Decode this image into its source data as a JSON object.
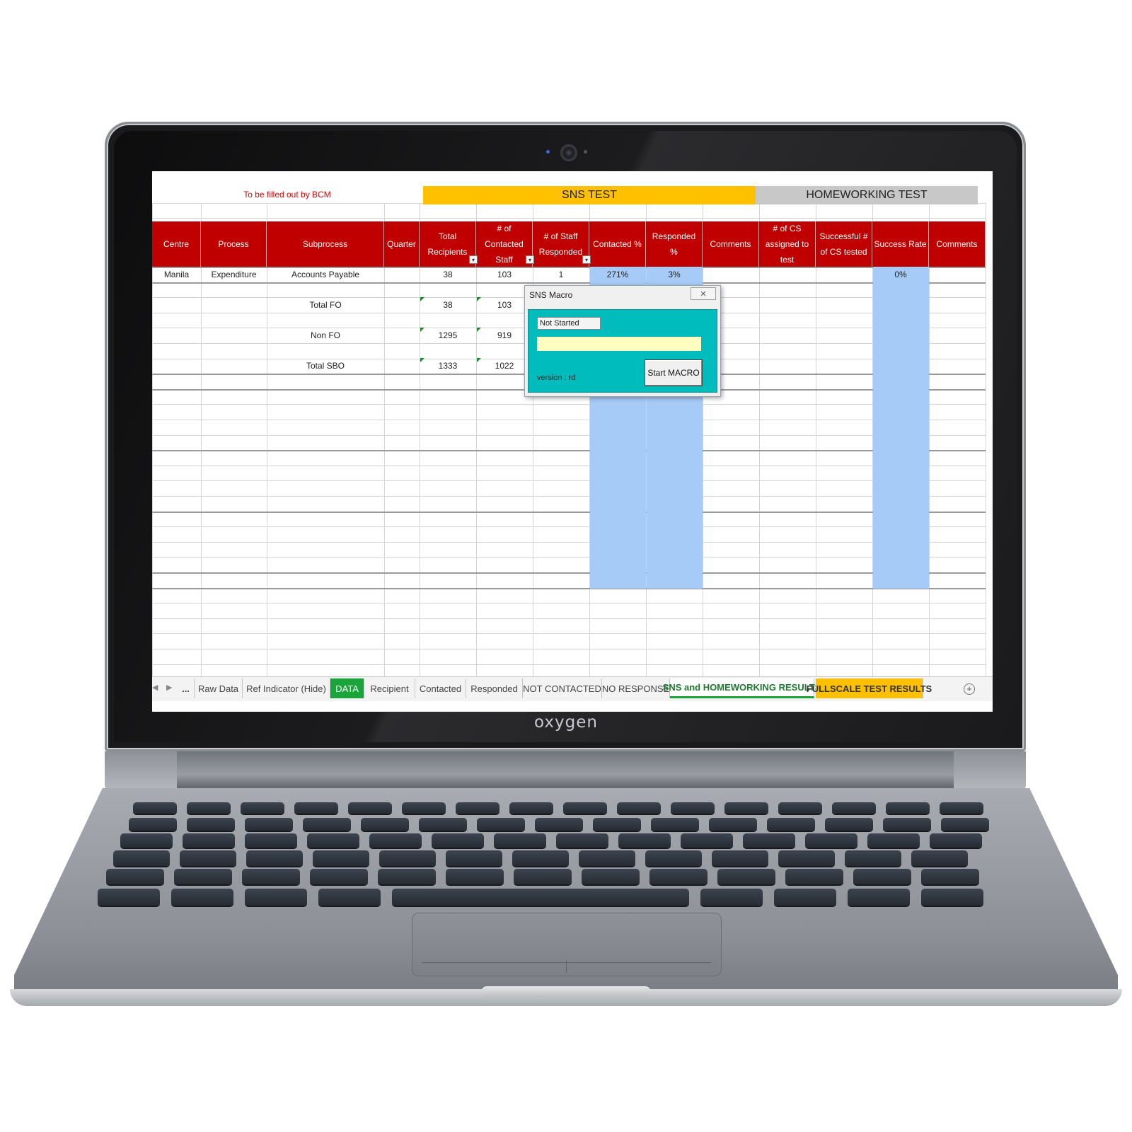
{
  "laptop": {
    "brand": "oxygen"
  },
  "sheet": {
    "note": "To be filled out by BCM",
    "sns_title": "SNS TEST",
    "homeworking_title": "HOMEWORKING TEST",
    "headers": [
      "Centre",
      "Process",
      "Subprocess",
      "Quarter",
      "Total Recipients",
      "# of Contacted Staff",
      "# of Staff Responded",
      "Contacted %",
      "Responded %",
      "Comments",
      "# of CS assigned to test",
      "Successful # of CS tested",
      "Success Rate",
      "Comments"
    ],
    "row1": {
      "centre": "Manila",
      "process": "Expenditure",
      "subprocess": "Accounts Payable",
      "total": "38",
      "contacted": "103",
      "responded": "1",
      "contacted_pct": "271%",
      "responded_pct": "3%",
      "success_rate": "0%"
    },
    "total_fo": {
      "label": "Total FO",
      "total": "38",
      "contacted": "103"
    },
    "non_fo": {
      "label": "Non FO",
      "total": "1295",
      "contacted": "919"
    },
    "total_sbo": {
      "label": "Total SBO",
      "total": "1333",
      "contacted": "1022"
    }
  },
  "tabs": {
    "ellipsis": "...",
    "items": [
      "Raw Data",
      "Ref Indicator (Hide)",
      "DATA",
      "Recipient",
      "Contacted",
      "Responded",
      "NOT CONTACTED",
      "NO RESPONSE",
      "SNS and HOMEWORKING RESULTS",
      "FULLSCALE TEST RESULTS"
    ]
  },
  "dialog": {
    "title": "SNS Macro",
    "status": "Not Started",
    "version": "version : rd",
    "start_label": "Start MACRO",
    "progress": 0
  },
  "colors": {
    "header_red": "#c00000",
    "sns_yellow": "#ffc000",
    "homeworking_gray": "#c8c8c8",
    "highlight_blue": "#a6cbf7",
    "dialog_teal": "#00bcbc"
  }
}
